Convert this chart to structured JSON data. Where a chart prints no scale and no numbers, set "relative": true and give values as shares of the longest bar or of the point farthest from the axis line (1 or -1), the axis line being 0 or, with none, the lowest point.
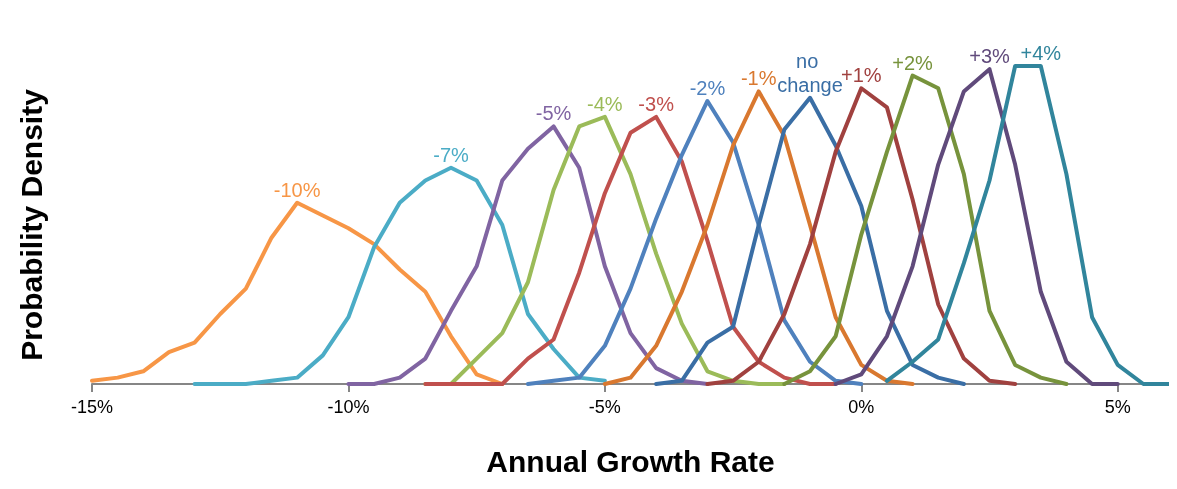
{
  "chart_data": {
    "type": "line",
    "relative": true,
    "xlabel": "Annual Growth Rate",
    "ylabel": "Probability Density",
    "xlim": [
      -15,
      6
    ],
    "xticks": [
      {
        "value": -15,
        "label": "-15%"
      },
      {
        "value": -10,
        "label": "-10%"
      },
      {
        "value": -5,
        "label": "-5%"
      },
      {
        "value": 0,
        "label": "0%"
      },
      {
        "value": 5,
        "label": "5%"
      }
    ],
    "grid": false,
    "legend": false,
    "marker": "none",
    "line_style": "solid",
    "series": [
      {
        "name": "-10%",
        "color": "#f79646",
        "x": [
          -15,
          -14.5,
          -14,
          -13.5,
          -13,
          -12.5,
          -12,
          -11.5,
          -11,
          -10.5,
          -10,
          -9.5,
          -9,
          -8.5,
          -8,
          -7.5,
          -7
        ],
        "values": [
          0.01,
          0.02,
          0.04,
          0.1,
          0.13,
          0.22,
          0.3,
          0.46,
          0.57,
          0.53,
          0.49,
          0.44,
          0.36,
          0.29,
          0.15,
          0.03,
          0
        ]
      },
      {
        "name": "-7%",
        "color": "#4bacc6",
        "x": [
          -13,
          -12.5,
          -12,
          -11.5,
          -11,
          -10.5,
          -10,
          -9.5,
          -9,
          -8.5,
          -8,
          -7.5,
          -7,
          -6.5,
          -6,
          -5.5,
          -5
        ],
        "values": [
          0,
          0,
          0,
          0.01,
          0.02,
          0.09,
          0.21,
          0.43,
          0.57,
          0.64,
          0.68,
          0.64,
          0.5,
          0.22,
          0.11,
          0.02,
          0.01
        ]
      },
      {
        "name": "-5%",
        "color": "#8064a2",
        "x": [
          -10,
          -9.5,
          -9,
          -8.5,
          -8,
          -7.5,
          -7,
          -6.5,
          -6,
          -5.5,
          -5,
          -4.5,
          -4,
          -3.5,
          -3
        ],
        "values": [
          0,
          0,
          0.02,
          0.08,
          0.23,
          0.37,
          0.64,
          0.74,
          0.81,
          0.68,
          0.37,
          0.16,
          0.05,
          0.01,
          0
        ]
      },
      {
        "name": "-4%",
        "color": "#9bbb59",
        "x": [
          -8.5,
          -8,
          -7.5,
          -7,
          -6.5,
          -6,
          -5.5,
          -5,
          -4.5,
          -4,
          -3.5,
          -3,
          -2.5,
          -2,
          -1.5
        ],
        "values": [
          0,
          0,
          0.08,
          0.16,
          0.32,
          0.61,
          0.81,
          0.84,
          0.66,
          0.41,
          0.19,
          0.04,
          0.01,
          0,
          0
        ]
      },
      {
        "name": "-3%",
        "color": "#c0504d",
        "x": [
          -8.5,
          -8,
          -7.5,
          -7,
          -6.5,
          -6,
          -5.5,
          -5,
          -4.5,
          -4,
          -3.5,
          -3,
          -2.5,
          -2,
          -1.5,
          -1,
          -0.5
        ],
        "values": [
          0,
          0,
          0,
          0,
          0.08,
          0.14,
          0.35,
          0.6,
          0.79,
          0.84,
          0.7,
          0.45,
          0.18,
          0.07,
          0.02,
          0,
          0
        ]
      },
      {
        "name": "-2%",
        "color": "#4f81bd",
        "x": [
          -6.5,
          -6,
          -5.5,
          -5,
          -4.5,
          -4,
          -3.5,
          -3,
          -2.5,
          -2,
          -1.5,
          -1,
          -0.5,
          0
        ],
        "values": [
          0,
          0.01,
          0.02,
          0.12,
          0.3,
          0.52,
          0.72,
          0.89,
          0.76,
          0.5,
          0.2,
          0.07,
          0.01,
          0
        ]
      },
      {
        "name": "-1%",
        "color": "#d9782f",
        "x": [
          -5,
          -4.5,
          -4,
          -3.5,
          -3,
          -2.5,
          -2,
          -1.5,
          -1,
          -0.5,
          0,
          0.5,
          1
        ],
        "values": [
          0,
          0.02,
          0.12,
          0.29,
          0.5,
          0.75,
          0.92,
          0.78,
          0.5,
          0.21,
          0.06,
          0.01,
          0
        ]
      },
      {
        "name": "no change",
        "color": "#3a6ea5",
        "x": [
          -4,
          -3.5,
          -3,
          -2.5,
          -2,
          -1.5,
          -1,
          -0.5,
          0,
          0.5,
          1,
          1.5,
          2
        ],
        "values": [
          0,
          0.01,
          0.13,
          0.18,
          0.5,
          0.8,
          0.9,
          0.75,
          0.56,
          0.23,
          0.06,
          0.02,
          0
        ]
      },
      {
        "name": "+1%",
        "color": "#a0413f",
        "x": [
          -3,
          -2.5,
          -2,
          -1.5,
          -1,
          -0.5,
          0,
          0.5,
          1,
          1.5,
          2,
          2.5,
          3
        ],
        "values": [
          0,
          0.01,
          0.07,
          0.22,
          0.44,
          0.73,
          0.93,
          0.87,
          0.58,
          0.25,
          0.08,
          0.01,
          0
        ]
      },
      {
        "name": "+2%",
        "color": "#77933c",
        "x": [
          -1.5,
          -1,
          -0.5,
          0,
          0.5,
          1,
          1.5,
          2,
          2.5,
          3,
          3.5,
          4
        ],
        "values": [
          0,
          0.04,
          0.15,
          0.47,
          0.73,
          0.97,
          0.93,
          0.66,
          0.23,
          0.06,
          0.02,
          0
        ]
      },
      {
        "name": "+3%",
        "color": "#604a7b",
        "x": [
          -0.5,
          0,
          0.5,
          1,
          1.5,
          2,
          2.5,
          3,
          3.5,
          4,
          4.5,
          5
        ],
        "values": [
          0,
          0.03,
          0.15,
          0.37,
          0.69,
          0.92,
          0.99,
          0.69,
          0.29,
          0.07,
          0,
          0
        ]
      },
      {
        "name": "+4%",
        "color": "#31859c",
        "x": [
          0.5,
          1,
          1.5,
          2,
          2.5,
          3,
          3.5,
          4,
          4.5,
          5,
          5.5,
          6
        ],
        "values": [
          0.01,
          0.07,
          0.14,
          0.38,
          0.64,
          1,
          1,
          0.66,
          0.21,
          0.06,
          0,
          0
        ]
      }
    ]
  }
}
